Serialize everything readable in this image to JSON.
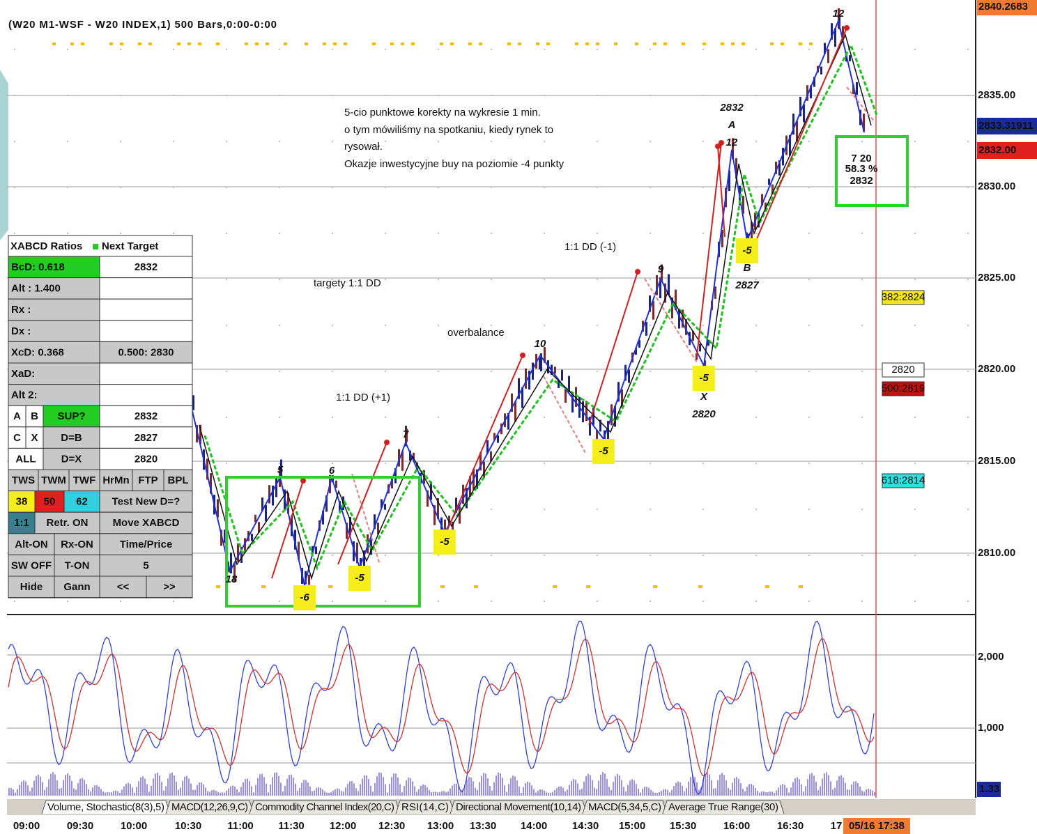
{
  "header": {
    "title": "(W20 M1-WSF - W20 INDEX,1) 500 Bars,0:00-0:00"
  },
  "price_axis": {
    "labels": [
      "2835.00",
      "2830.00",
      "2825.00",
      "2820.00",
      "2815.00",
      "2810.00"
    ],
    "tags": [
      "2840.2683",
      "2833.31911",
      "2832.00"
    ]
  },
  "oscillator_axis": {
    "labels": [
      "2,000",
      "1,000"
    ],
    "tag": "1.33"
  },
  "time_axis": {
    "labels": [
      "09:00",
      "09:30",
      "10:00",
      "10:30",
      "11:00",
      "11:30",
      "12:00",
      "12:30",
      "13:00",
      "13:30",
      "14:00",
      "14:30",
      "15:00",
      "15:30",
      "16:00",
      "16:30",
      "17"
    ],
    "cursor": "05/16 17:38"
  },
  "annotations": {
    "note": [
      "5-cio punktowe korekty na wykresie 1 min.",
      "o tym mówiliśmy na spotkaniu, kiedy rynek to",
      "rysował.",
      "Okazje inwestycyjne buy na poziomie -4 punkty"
    ],
    "labels": [
      "targety 1:1 DD",
      "1:1 DD (-1)",
      "overbalance",
      "1:1 DD (+1)"
    ]
  },
  "wave_labels": [
    "12",
    "2832",
    "A",
    "12",
    "9",
    "10",
    "7",
    "5",
    "6",
    "18",
    "-6",
    "-5",
    "-5",
    "-5",
    "-5",
    "X",
    "2820",
    "-5",
    "B",
    "2827"
  ],
  "target_box": [
    "7 20",
    "58.3 %",
    "2832"
  ],
  "level_tags": [
    "382:2824",
    "2820",
    "500:2819",
    "618:2814"
  ],
  "xabcd_panel": {
    "header": "XABCD Ratios",
    "header_right": "Next Target",
    "rows": [
      [
        "BcD:   0.618",
        "2832"
      ],
      [
        "Alt  :   1.400",
        ""
      ],
      [
        "Rx  :",
        ""
      ],
      [
        "Dx  :",
        ""
      ],
      [
        "XcD:   0.368",
        "0.500: 2830"
      ],
      [
        "XaD:",
        ""
      ],
      [
        "Alt 2:",
        ""
      ],
      [
        "A",
        "B",
        "SUP?",
        "2832"
      ],
      [
        "C",
        "X",
        "D=B",
        "2827"
      ],
      [
        "ALL",
        "D=X",
        "2820"
      ],
      [
        "TWS",
        "TWM",
        "TWF",
        "HrMn",
        "FTP",
        "BPL"
      ],
      [
        "38",
        "50",
        "62",
        "Test New D=?"
      ],
      [
        "1:1",
        "Retr. ON",
        "Move XABCD"
      ],
      [
        "Alt-ON",
        "Rx-ON",
        "Time/Price"
      ],
      [
        "SW OFF",
        "T-ON",
        "5"
      ],
      [
        "Hide",
        "Gann",
        "<<",
        ">>"
      ]
    ]
  },
  "indicator_tabs": [
    "Volume, Stochastic(8(3),5)",
    "MACD(12,26,9,C)",
    "Commodity Channel Index(20,C)",
    "RSI(14,C)",
    "Directional Movement(10,14)",
    "MACD(5,34,5,C)",
    "Average True Range(30)"
  ]
}
